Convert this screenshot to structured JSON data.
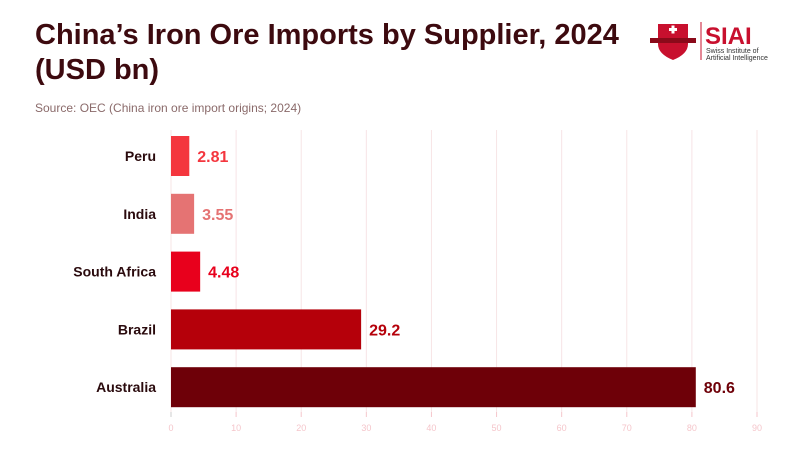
{
  "title": "China’s Iron Ore Imports by Supplier, 2024 (USD bn)",
  "source": "Source: OEC (China iron ore import origins; 2024)",
  "logo": {
    "name": "SIAI",
    "subtitle_line1": "Swiss Institute of",
    "subtitle_line2": "Artificial Intelligence"
  },
  "chart_data": {
    "type": "bar",
    "orientation": "horizontal",
    "title": "China’s Iron Ore Imports by Supplier, 2024 (USD bn)",
    "categories": [
      "Peru",
      "India",
      "South Africa",
      "Brazil",
      "Australia"
    ],
    "values": [
      2.81,
      3.55,
      4.48,
      29.2,
      80.6
    ],
    "labels": [
      "2.81",
      "3.55",
      "4.48",
      "29.2",
      "80.6"
    ],
    "colors": [
      "#f4363e",
      "#e57373",
      "#e8001c",
      "#b5000a",
      "#6e0008"
    ],
    "xlim": [
      0,
      90
    ],
    "xticks": [
      0,
      10,
      20,
      30,
      40,
      50,
      60,
      70,
      80,
      90
    ],
    "xlabel": "",
    "ylabel": "",
    "grid": true
  }
}
